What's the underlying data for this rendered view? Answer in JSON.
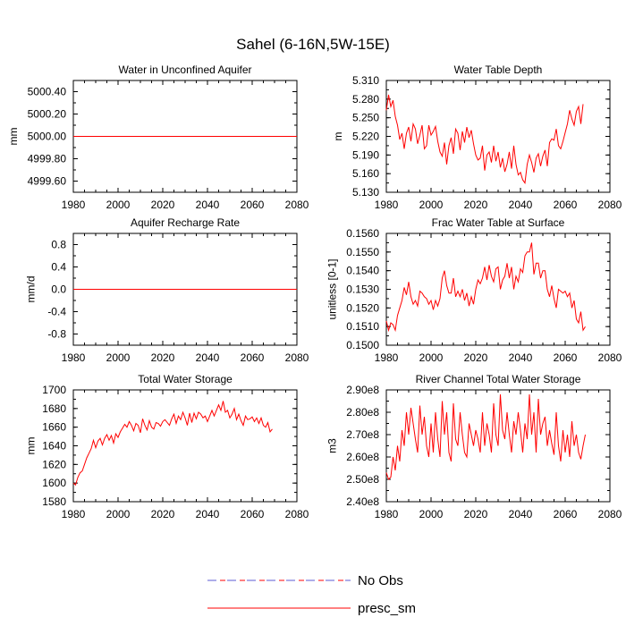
{
  "page": {
    "title": "Sahel (6-16N,5W-15E)"
  },
  "legend": {
    "entries": [
      {
        "label": "No Obs",
        "color": "#5b5bd6",
        "dash": true
      },
      {
        "label": "presc_sm",
        "color": "#ff0000",
        "dash": false
      }
    ]
  },
  "chart_data": [
    {
      "type": "line",
      "title": "Water in Unconfined Aquifer",
      "xlabel": "",
      "ylabel": "mm",
      "xlim": [
        1980,
        2080
      ],
      "ylim": [
        4999.5,
        5000.5
      ],
      "xticks": [
        1980,
        2000,
        2020,
        2040,
        2060,
        2080
      ],
      "xtick_labels": [
        "1980",
        "2000",
        "2020",
        "2040",
        "2060",
        "2080"
      ],
      "yticks": [
        4999.6,
        4999.8,
        5000.0,
        5000.2,
        5000.4
      ],
      "ytick_labels": [
        "4999.60",
        "4999.80",
        "5000.00",
        "5000.20",
        "5000.40"
      ],
      "x_start": 1980,
      "x_step": 1,
      "series": [
        {
          "name": "presc_sm",
          "color": "#ff0000",
          "constant": 5000.0
        }
      ]
    },
    {
      "type": "line",
      "title": "Water Table Depth",
      "xlabel": "",
      "ylabel": "m",
      "xlim": [
        1980,
        2080
      ],
      "ylim": [
        5.13,
        5.31
      ],
      "xticks": [
        1980,
        2000,
        2020,
        2040,
        2060,
        2080
      ],
      "xtick_labels": [
        "1980",
        "2000",
        "2020",
        "2040",
        "2060",
        "2080"
      ],
      "yticks": [
        5.13,
        5.16,
        5.19,
        5.22,
        5.25,
        5.28,
        5.31
      ],
      "ytick_labels": [
        "5.130",
        "5.160",
        "5.190",
        "5.220",
        "5.250",
        "5.280",
        "5.310"
      ],
      "x_start": 1980,
      "x_step": 1,
      "series": [
        {
          "name": "presc_sm",
          "color": "#ff0000",
          "values": [
            5.262,
            5.287,
            5.268,
            5.278,
            5.252,
            5.238,
            5.215,
            5.225,
            5.2,
            5.225,
            5.235,
            5.212,
            5.24,
            5.232,
            5.208,
            5.222,
            5.238,
            5.2,
            5.205,
            5.238,
            5.222,
            5.228,
            5.236,
            5.212,
            5.195,
            5.188,
            5.21,
            5.175,
            5.205,
            5.218,
            5.192,
            5.232,
            5.225,
            5.198,
            5.228,
            5.21,
            5.235,
            5.218,
            5.23,
            5.208,
            5.19,
            5.182,
            5.185,
            5.205,
            5.165,
            5.19,
            5.195,
            5.178,
            5.205,
            5.18,
            5.195,
            5.17,
            5.185,
            5.163,
            5.175,
            5.195,
            5.168,
            5.205,
            5.175,
            5.158,
            5.162,
            5.15,
            5.145,
            5.175,
            5.19,
            5.178,
            5.162,
            5.185,
            5.192,
            5.172,
            5.188,
            5.198,
            5.172,
            5.21,
            5.216,
            5.214,
            5.232,
            5.205,
            5.2,
            5.212,
            5.226,
            5.24,
            5.262,
            5.248,
            5.238,
            5.26,
            5.268,
            5.24,
            5.272
          ]
        }
      ]
    },
    {
      "type": "line",
      "title": "Aquifer Recharge Rate",
      "xlabel": "",
      "ylabel": "mm/d",
      "xlim": [
        1980,
        2080
      ],
      "ylim": [
        -1.0,
        1.0
      ],
      "xticks": [
        1980,
        2000,
        2020,
        2040,
        2060,
        2080
      ],
      "xtick_labels": [
        "1980",
        "2000",
        "2020",
        "2040",
        "2060",
        "2080"
      ],
      "yticks": [
        -0.8,
        -0.4,
        0.0,
        0.4,
        0.8
      ],
      "ytick_labels": [
        "-0.8",
        "-0.4",
        "0.0",
        "0.4",
        "0.8"
      ],
      "x_start": 1980,
      "x_step": 1,
      "series": [
        {
          "name": "presc_sm",
          "color": "#ff0000",
          "constant": 0.0
        }
      ]
    },
    {
      "type": "line",
      "title": "Frac Water Table at Surface",
      "xlabel": "",
      "ylabel": "unitless [0-1]",
      "xlim": [
        1980,
        2080
      ],
      "ylim": [
        0.15,
        0.156
      ],
      "xticks": [
        1980,
        2000,
        2020,
        2040,
        2060,
        2080
      ],
      "xtick_labels": [
        "1980",
        "2000",
        "2020",
        "2040",
        "2060",
        "2080"
      ],
      "yticks": [
        0.15,
        0.151,
        0.152,
        0.153,
        0.154,
        0.155,
        0.156
      ],
      "ytick_labels": [
        "0.1500",
        "0.1510",
        "0.1520",
        "0.1530",
        "0.1540",
        "0.1550",
        "0.1560"
      ],
      "x_start": 1980,
      "x_step": 1,
      "series": [
        {
          "name": "presc_sm",
          "color": "#ff0000",
          "values": [
            0.1513,
            0.1508,
            0.1512,
            0.1511,
            0.1508,
            0.1516,
            0.152,
            0.1524,
            0.1531,
            0.1527,
            0.1534,
            0.1526,
            0.1522,
            0.1524,
            0.1521,
            0.1529,
            0.1528,
            0.1526,
            0.1525,
            0.1522,
            0.1524,
            0.1519,
            0.1524,
            0.1521,
            0.1525,
            0.1536,
            0.154,
            0.1532,
            0.1528,
            0.1528,
            0.1536,
            0.1526,
            0.1529,
            0.1526,
            0.153,
            0.1524,
            0.1528,
            0.1521,
            0.1526,
            0.1522,
            0.153,
            0.1535,
            0.1533,
            0.1536,
            0.1542,
            0.1535,
            0.1543,
            0.1537,
            0.1534,
            0.1541,
            0.1542,
            0.153,
            0.1535,
            0.1537,
            0.1544,
            0.1536,
            0.1542,
            0.153,
            0.1537,
            0.1534,
            0.1541,
            0.1539,
            0.1548,
            0.155,
            0.155,
            0.1555,
            0.1538,
            0.1544,
            0.1544,
            0.1536,
            0.154,
            0.154,
            0.153,
            0.1526,
            0.1532,
            0.1525,
            0.152,
            0.153,
            0.1529,
            0.1528,
            0.1529,
            0.1526,
            0.1528,
            0.152,
            0.1524,
            0.1514,
            0.1512,
            0.1518,
            0.1508,
            0.151
          ]
        }
      ]
    },
    {
      "type": "line",
      "title": "Total Water Storage",
      "xlabel": "",
      "ylabel": "mm",
      "xlim": [
        1980,
        2080
      ],
      "ylim": [
        1580,
        1700
      ],
      "xticks": [
        1980,
        2000,
        2020,
        2040,
        2060,
        2080
      ],
      "xtick_labels": [
        "1980",
        "2000",
        "2020",
        "2040",
        "2060",
        "2080"
      ],
      "yticks": [
        1580,
        1600,
        1620,
        1640,
        1660,
        1680,
        1700
      ],
      "ytick_labels": [
        "1580",
        "1600",
        "1620",
        "1640",
        "1660",
        "1680",
        "1700"
      ],
      "x_start": 1980,
      "x_step": 1,
      "series": [
        {
          "name": "presc_sm",
          "color": "#ff0000",
          "values": [
            1600,
            1598,
            1606,
            1611,
            1613,
            1620,
            1627,
            1632,
            1637,
            1646,
            1638,
            1645,
            1648,
            1641,
            1648,
            1652,
            1646,
            1651,
            1643,
            1653,
            1649,
            1655,
            1659,
            1663,
            1660,
            1666,
            1662,
            1656,
            1664,
            1662,
            1654,
            1669,
            1662,
            1657,
            1667,
            1660,
            1658,
            1665,
            1664,
            1661,
            1666,
            1668,
            1665,
            1662,
            1669,
            1674,
            1664,
            1672,
            1668,
            1676,
            1670,
            1662,
            1675,
            1665,
            1675,
            1669,
            1676,
            1674,
            1670,
            1672,
            1666,
            1672,
            1678,
            1672,
            1678,
            1684,
            1678,
            1688,
            1676,
            1678,
            1670,
            1674,
            1680,
            1668,
            1674,
            1667,
            1662,
            1672,
            1668,
            1669,
            1671,
            1666,
            1670,
            1664,
            1670,
            1662,
            1660,
            1665,
            1655,
            1658
          ]
        }
      ]
    },
    {
      "type": "line",
      "title": "River Channel Total Water Storage",
      "xlabel": "",
      "ylabel": "m3",
      "xlim": [
        1980,
        2080
      ],
      "ylim": [
        240000000,
        290000000
      ],
      "xticks": [
        1980,
        2000,
        2020,
        2040,
        2060,
        2080
      ],
      "xtick_labels": [
        "1980",
        "2000",
        "2020",
        "2040",
        "2060",
        "2080"
      ],
      "yticks": [
        240000000,
        250000000,
        260000000,
        270000000,
        280000000,
        290000000
      ],
      "ytick_labels": [
        "2.40e8",
        "2.50e8",
        "2.60e8",
        "2.70e8",
        "2.80e8",
        "2.90e8"
      ],
      "x_start": 1980,
      "x_step": 1,
      "series": [
        {
          "name": "presc_sm",
          "color": "#ff0000",
          "values": [
            253000000,
            250000000,
            251000000,
            260000000,
            254000000,
            265000000,
            258000000,
            272000000,
            265000000,
            280000000,
            270000000,
            282000000,
            275000000,
            268000000,
            262000000,
            283000000,
            270000000,
            278000000,
            265000000,
            260000000,
            275000000,
            262000000,
            280000000,
            268000000,
            260000000,
            285000000,
            270000000,
            280000000,
            262000000,
            258000000,
            284000000,
            268000000,
            265000000,
            280000000,
            270000000,
            262000000,
            260000000,
            275000000,
            270000000,
            265000000,
            272000000,
            268000000,
            262000000,
            280000000,
            265000000,
            275000000,
            270000000,
            262000000,
            284000000,
            270000000,
            265000000,
            288000000,
            272000000,
            268000000,
            280000000,
            270000000,
            262000000,
            276000000,
            270000000,
            280000000,
            272000000,
            262000000,
            275000000,
            268000000,
            288000000,
            270000000,
            280000000,
            262000000,
            286000000,
            270000000,
            275000000,
            278000000,
            265000000,
            272000000,
            266000000,
            261000000,
            280000000,
            265000000,
            258000000,
            272000000,
            262000000,
            270000000,
            260000000,
            276000000,
            265000000,
            270000000,
            262000000,
            259000000,
            265000000,
            270000000
          ]
        }
      ]
    }
  ]
}
